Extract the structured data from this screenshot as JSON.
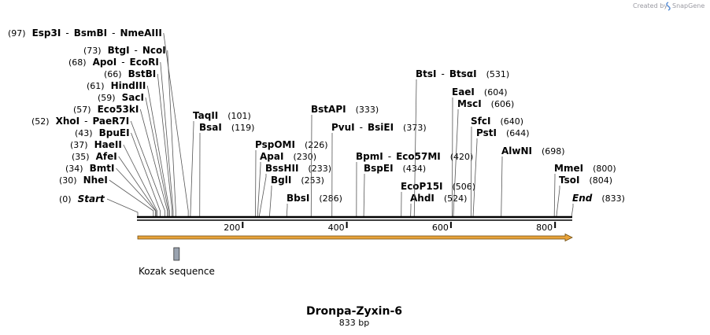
{
  "credit": "Created by",
  "brand": "SnapGene",
  "title": "Dronpa-Zyxin-6",
  "length_label": "833 bp",
  "sequence_length": 833,
  "feature": {
    "name": "Kozak sequence",
    "start": 70,
    "end": 80
  },
  "ticks": [
    "200",
    "400",
    "600",
    "800"
  ],
  "tick_values": [
    200,
    400,
    600,
    800
  ],
  "site_groups": [
    {
      "pos": 0,
      "pos_label": "(0)",
      "label": "Start",
      "italic": true,
      "parts": []
    },
    {
      "pos": 30,
      "pos_label": "(30)",
      "parts": [
        "NheI"
      ]
    },
    {
      "pos": 34,
      "pos_label": "(34)",
      "parts": [
        "BmtI"
      ]
    },
    {
      "pos": 35,
      "pos_label": "(35)",
      "parts": [
        "AfeI"
      ]
    },
    {
      "pos": 37,
      "pos_label": "(37)",
      "parts": [
        "HaeII"
      ]
    },
    {
      "pos": 43,
      "pos_label": "(43)",
      "parts": [
        "BpuEI"
      ]
    },
    {
      "pos": 52,
      "pos_label": "(52)",
      "parts": [
        "XhoI",
        "PaeR7I"
      ]
    },
    {
      "pos": 57,
      "pos_label": "(57)",
      "parts": [
        "Eco53kI"
      ]
    },
    {
      "pos": 59,
      "pos_label": "(59)",
      "parts": [
        "SacI"
      ]
    },
    {
      "pos": 61,
      "pos_label": "(61)",
      "parts": [
        "HindIII"
      ]
    },
    {
      "pos": 66,
      "pos_label": "(66)",
      "parts": [
        "BstBI"
      ]
    },
    {
      "pos": 68,
      "pos_label": "(68)",
      "parts": [
        "ApoI",
        "EcoRI"
      ]
    },
    {
      "pos": 73,
      "pos_label": "(73)",
      "parts": [
        "BtgI",
        "NcoI"
      ]
    },
    {
      "pos": 97,
      "pos_label": "(97)",
      "parts": [
        "Esp3I",
        "BsmBI",
        "NmeAIII"
      ]
    },
    {
      "pos": 101,
      "pos_label": "(101)",
      "parts": [
        "TaqII"
      ]
    },
    {
      "pos": 119,
      "pos_label": "(119)",
      "parts": [
        "BsaI"
      ]
    },
    {
      "pos": 226,
      "pos_label": "(226)",
      "parts": [
        "PspOMI"
      ]
    },
    {
      "pos": 230,
      "pos_label": "(230)",
      "parts": [
        "ApaI"
      ]
    },
    {
      "pos": 233,
      "pos_label": "(233)",
      "parts": [
        "BssHII"
      ]
    },
    {
      "pos": 253,
      "pos_label": "(253)",
      "parts": [
        "BglI"
      ]
    },
    {
      "pos": 286,
      "pos_label": "(286)",
      "parts": [
        "BbsI"
      ]
    },
    {
      "pos": 333,
      "pos_label": "(333)",
      "parts": [
        "BstAPI"
      ]
    },
    {
      "pos": 373,
      "pos_label": "(373)",
      "parts": [
        "PvuI",
        "BsiEI"
      ]
    },
    {
      "pos": 420,
      "pos_label": "(420)",
      "parts": [
        "BpmI",
        "Eco57MI"
      ]
    },
    {
      "pos": 434,
      "pos_label": "(434)",
      "parts": [
        "BspEI"
      ]
    },
    {
      "pos": 506,
      "pos_label": "(506)",
      "parts": [
        "EcoP15I"
      ]
    },
    {
      "pos": 524,
      "pos_label": "(524)",
      "parts": [
        "AhdI"
      ]
    },
    {
      "pos": 531,
      "pos_label": "(531)",
      "parts": [
        "BtsI",
        "BtsαI"
      ]
    },
    {
      "pos": 604,
      "pos_label": "(604)",
      "parts": [
        "EaeI"
      ]
    },
    {
      "pos": 606,
      "pos_label": "(606)",
      "parts": [
        "MscI"
      ]
    },
    {
      "pos": 640,
      "pos_label": "(640)",
      "parts": [
        "SfcI"
      ]
    },
    {
      "pos": 644,
      "pos_label": "(644)",
      "parts": [
        "PstI"
      ]
    },
    {
      "pos": 698,
      "pos_label": "(698)",
      "parts": [
        "AlwNI"
      ]
    },
    {
      "pos": 800,
      "pos_label": "(800)",
      "parts": [
        "MmeI"
      ]
    },
    {
      "pos": 804,
      "pos_label": "(804)",
      "parts": [
        "TsoI"
      ]
    },
    {
      "pos": 833,
      "pos_label": "(833)",
      "label": "End",
      "italic": true,
      "parts": []
    }
  ],
  "colors": {
    "arrow_fill": "#e8a33a",
    "arrow_stroke": "#6b4a10",
    "feature_box": "#9aa3b0",
    "backbone": "#000000",
    "leader": "#555555"
  }
}
